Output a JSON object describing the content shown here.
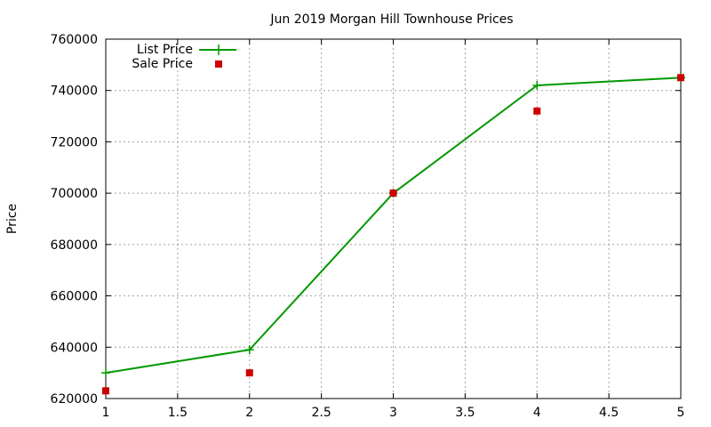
{
  "chart_data": {
    "type": "line",
    "title": "Jun 2019 Morgan Hill Townhouse Prices",
    "xlabel": "",
    "ylabel": "Price",
    "xlim": [
      1,
      5
    ],
    "ylim": [
      620000,
      760000
    ],
    "x_ticks": [
      1,
      1.5,
      2,
      2.5,
      3,
      3.5,
      4,
      4.5,
      5
    ],
    "x_tick_labels": [
      "1",
      "1.5",
      "2",
      "2.5",
      "3",
      "3.5",
      "4",
      "4.5",
      "5"
    ],
    "y_ticks": [
      620000,
      640000,
      660000,
      680000,
      700000,
      720000,
      740000,
      760000
    ],
    "y_tick_labels": [
      "620000",
      "640000",
      "660000",
      "680000",
      "700000",
      "720000",
      "740000",
      "760000"
    ],
    "grid": true,
    "legend_position": "top-left",
    "series": [
      {
        "name": "List Price",
        "style": "line-with-plus-markers",
        "color": "#009900",
        "x": [
          1,
          2,
          3,
          4,
          5
        ],
        "values": [
          630000,
          639000,
          700000,
          742000,
          745000
        ]
      },
      {
        "name": "Sale Price",
        "style": "square-markers",
        "color": "#cc0000",
        "x": [
          1,
          2,
          3,
          4,
          5
        ],
        "values": [
          623000,
          630000,
          700000,
          732000,
          745000
        ]
      }
    ]
  }
}
